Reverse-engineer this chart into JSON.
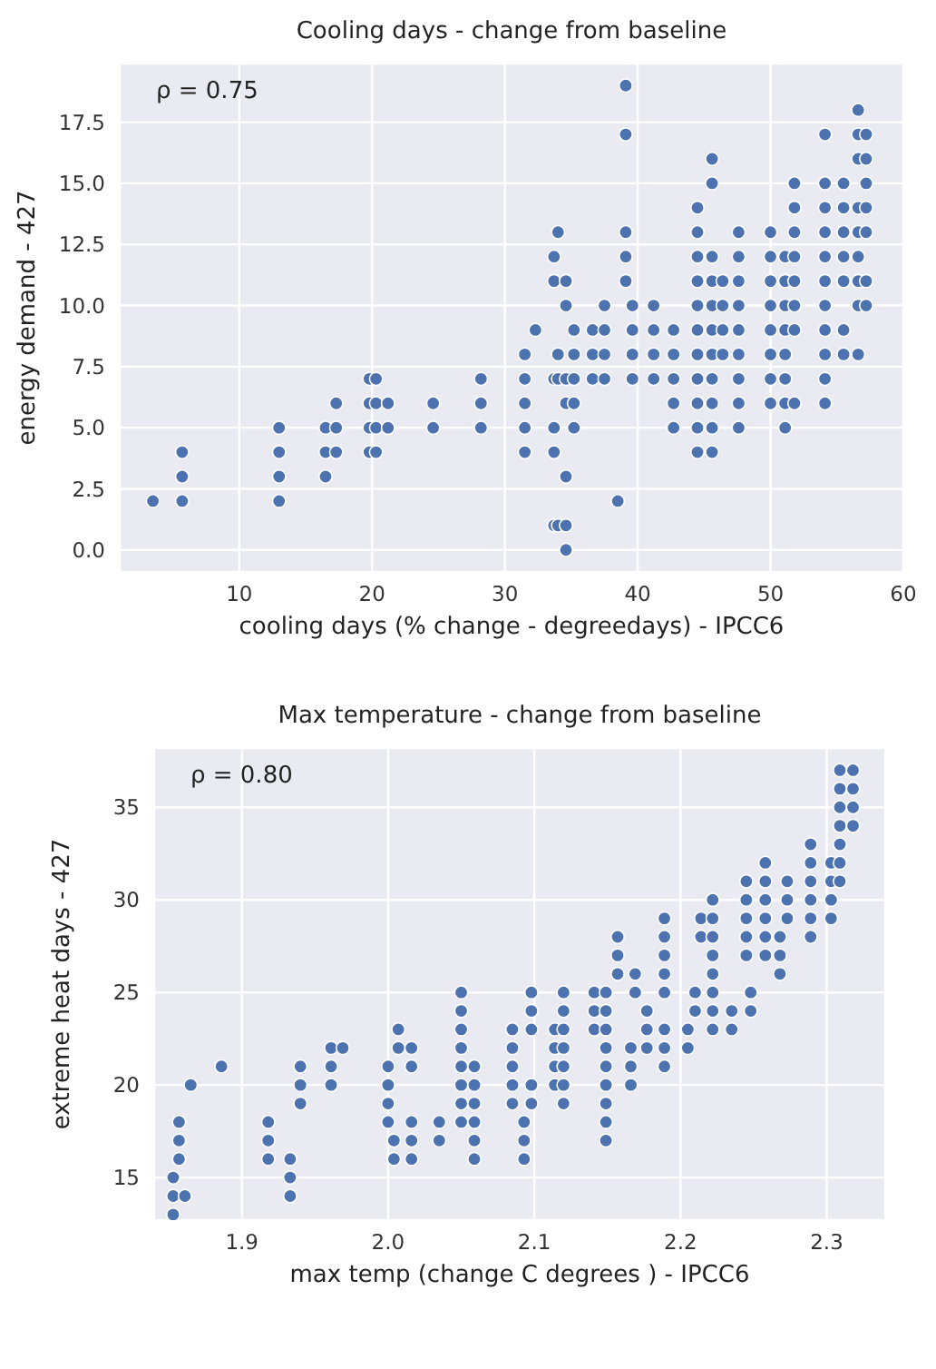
{
  "chart_data": [
    {
      "type": "scatter",
      "title": "Cooling days - change from baseline",
      "xlabel": "cooling days (% change - degreedays) - IPCC6",
      "ylabel": "energy demand - 427",
      "annotations": [
        "ρ = 0.75"
      ],
      "color": "#4c72b0",
      "marker": "circle",
      "grid": true,
      "x": [
        3.5,
        5.7,
        5.7,
        5.7,
        13,
        13,
        13,
        13,
        16.5,
        16.5,
        16.5,
        17.3,
        17.3,
        17.3,
        19.8,
        19.8,
        19.8,
        19.8,
        20.3,
        20.3,
        20.3,
        20.3,
        21.2,
        21.2,
        24.6,
        24.6,
        28.2,
        28.2,
        28.2,
        31.5,
        31.5,
        31.5,
        31.5,
        31.5,
        32.3,
        33.7,
        33.7,
        33.7,
        33.7,
        33.7,
        33.7,
        34.0,
        34.0,
        34.0,
        34.0,
        34.6,
        34.6,
        34.6,
        34.6,
        34.6,
        34.6,
        34.6,
        35.2,
        35.2,
        35.2,
        35.2,
        35.2,
        36.6,
        36.6,
        36.6,
        37.5,
        37.5,
        37.5,
        37.5,
        38.5,
        39.1,
        39.1,
        39.1,
        39.1,
        39.1,
        39.6,
        39.6,
        39.6,
        39.6,
        41.2,
        41.2,
        41.2,
        41.2,
        42.7,
        42.7,
        42.7,
        42.7,
        42.7,
        44.5,
        44.5,
        44.5,
        44.5,
        44.5,
        44.5,
        44.5,
        44.5,
        44.5,
        44.5,
        44.5,
        45.6,
        45.6,
        45.6,
        45.6,
        45.6,
        45.6,
        45.6,
        45.6,
        45.6,
        45.6,
        45.6,
        46.4,
        46.4,
        46.4,
        46.4,
        47.6,
        47.6,
        47.6,
        47.6,
        47.6,
        47.6,
        47.6,
        47.6,
        47.6,
        50.0,
        50.0,
        50.0,
        50.0,
        50.0,
        50.0,
        50.0,
        50.0,
        51.1,
        51.1,
        51.1,
        51.1,
        51.1,
        51.1,
        51.1,
        51.1,
        51.8,
        51.8,
        51.8,
        51.8,
        51.8,
        51.8,
        51.8,
        51.8,
        54.1,
        54.1,
        54.1,
        54.1,
        54.1,
        54.1,
        54.1,
        54.1,
        54.1,
        54.1,
        54.1,
        55.5,
        55.5,
        55.5,
        55.5,
        55.5,
        55.5,
        55.5,
        56.6,
        56.6,
        56.6,
        56.6,
        56.6,
        56.6,
        56.6,
        56.6,
        56.6,
        57.2,
        57.2,
        57.2,
        57.2,
        57.2,
        57.2,
        57.2
      ],
      "values": [
        2,
        2,
        3,
        4,
        2,
        3,
        4,
        5,
        3,
        4,
        5,
        4,
        5,
        6,
        4,
        5,
        6,
        7,
        4,
        5,
        6,
        7,
        5,
        6,
        5,
        6,
        5,
        6,
        7,
        4,
        5,
        6,
        7,
        8,
        9,
        1,
        4,
        5,
        7,
        11,
        12,
        1,
        7,
        8,
        13,
        0,
        1,
        3,
        6,
        7,
        10,
        11,
        5,
        6,
        7,
        8,
        9,
        7,
        8,
        9,
        7,
        8,
        9,
        10,
        2,
        11,
        12,
        13,
        17,
        19,
        7,
        8,
        9,
        10,
        7,
        8,
        9,
        10,
        5,
        6,
        7,
        8,
        9,
        4,
        5,
        6,
        7,
        8,
        9,
        10,
        11,
        12,
        13,
        14,
        4,
        5,
        6,
        7,
        8,
        9,
        10,
        11,
        12,
        15,
        16,
        8,
        9,
        10,
        11,
        5,
        6,
        7,
        8,
        9,
        10,
        11,
        12,
        13,
        6,
        7,
        8,
        9,
        10,
        11,
        12,
        13,
        5,
        6,
        7,
        8,
        9,
        10,
        11,
        12,
        6,
        9,
        10,
        11,
        12,
        13,
        14,
        15,
        6,
        7,
        8,
        9,
        10,
        11,
        12,
        13,
        14,
        15,
        17,
        8,
        9,
        11,
        12,
        13,
        14,
        15,
        8,
        10,
        11,
        12,
        13,
        14,
        16,
        17,
        18,
        10,
        11,
        13,
        14,
        15,
        16,
        17
      ],
      "xlim": [
        1,
        60
      ],
      "xticks": [
        10,
        20,
        30,
        40,
        50,
        60
      ],
      "ylim": [
        -0.9,
        19.9
      ],
      "yticks": [
        {
          "value": 0,
          "label": "0.0"
        },
        {
          "value": 2.5,
          "label": "2.5"
        },
        {
          "value": 5,
          "label": "5.0"
        },
        {
          "value": 7.5,
          "label": "7.5"
        },
        {
          "value": 10,
          "label": "10.0"
        },
        {
          "value": 12.5,
          "label": "12.5"
        },
        {
          "value": 15,
          "label": "15.0"
        },
        {
          "value": 17.5,
          "label": "17.5"
        }
      ]
    },
    {
      "type": "scatter",
      "title": "Max temperature - change from baseline",
      "xlabel": "max temp (change C degrees ) - IPCC6",
      "ylabel": "extreme heat days - 427",
      "annotations": [
        "ρ = 0.80"
      ],
      "color": "#4c72b0",
      "marker": "circle",
      "grid": true,
      "x": [
        1.853,
        1.853,
        1.853,
        1.857,
        1.857,
        1.857,
        1.861,
        1.865,
        1.886,
        1.918,
        1.918,
        1.918,
        1.933,
        1.933,
        1.933,
        1.94,
        1.94,
        1.94,
        1.961,
        1.961,
        1.961,
        1.969,
        2.0,
        2.0,
        2.0,
        2.0,
        2.004,
        2.004,
        2.007,
        2.007,
        2.016,
        2.016,
        2.016,
        2.016,
        2.016,
        2.035,
        2.035,
        2.05,
        2.05,
        2.05,
        2.05,
        2.05,
        2.05,
        2.05,
        2.05,
        2.059,
        2.059,
        2.059,
        2.059,
        2.059,
        2.059,
        2.085,
        2.085,
        2.085,
        2.085,
        2.085,
        2.093,
        2.093,
        2.093,
        2.098,
        2.098,
        2.098,
        2.098,
        2.098,
        2.114,
        2.114,
        2.114,
        2.114,
        2.12,
        2.12,
        2.12,
        2.12,
        2.12,
        2.12,
        2.12,
        2.141,
        2.141,
        2.141,
        2.149,
        2.149,
        2.149,
        2.149,
        2.149,
        2.149,
        2.149,
        2.149,
        2.149,
        2.157,
        2.157,
        2.157,
        2.166,
        2.166,
        2.166,
        2.169,
        2.169,
        2.177,
        2.177,
        2.177,
        2.189,
        2.189,
        2.189,
        2.189,
        2.189,
        2.189,
        2.189,
        2.189,
        2.205,
        2.205,
        2.21,
        2.21,
        2.214,
        2.214,
        2.222,
        2.222,
        2.222,
        2.222,
        2.222,
        2.222,
        2.222,
        2.222,
        2.235,
        2.235,
        2.245,
        2.245,
        2.245,
        2.245,
        2.245,
        2.248,
        2.248,
        2.258,
        2.258,
        2.258,
        2.258,
        2.258,
        2.258,
        2.268,
        2.268,
        2.268,
        2.273,
        2.273,
        2.273,
        2.289,
        2.289,
        2.289,
        2.289,
        2.289,
        2.289,
        2.303,
        2.303,
        2.303,
        2.303,
        2.309,
        2.309,
        2.309,
        2.309,
        2.309,
        2.309,
        2.309,
        2.318,
        2.318,
        2.318,
        2.318
      ],
      "values": [
        13,
        14,
        15,
        16,
        17,
        18,
        14,
        20,
        21,
        16,
        17,
        18,
        14,
        15,
        16,
        19,
        20,
        21,
        20,
        21,
        22,
        22,
        18,
        19,
        20,
        21,
        16,
        17,
        22,
        23,
        16,
        17,
        18,
        21,
        22,
        17,
        18,
        18,
        19,
        20,
        21,
        22,
        23,
        24,
        25,
        16,
        17,
        18,
        19,
        20,
        21,
        19,
        20,
        21,
        22,
        23,
        16,
        17,
        18,
        19,
        20,
        23,
        24,
        25,
        20,
        21,
        22,
        23,
        19,
        20,
        21,
        22,
        23,
        24,
        25,
        23,
        24,
        25,
        17,
        18,
        19,
        20,
        21,
        22,
        23,
        24,
        25,
        26,
        27,
        28,
        20,
        21,
        22,
        25,
        26,
        22,
        23,
        24,
        21,
        22,
        23,
        25,
        26,
        27,
        28,
        29,
        22,
        23,
        24,
        25,
        28,
        29,
        23,
        24,
        25,
        26,
        27,
        28,
        29,
        30,
        23,
        24,
        27,
        28,
        29,
        30,
        31,
        24,
        25,
        27,
        28,
        29,
        30,
        31,
        32,
        26,
        27,
        28,
        29,
        30,
        31,
        28,
        29,
        30,
        31,
        32,
        33,
        29,
        30,
        31,
        32,
        31,
        32,
        33,
        34,
        35,
        36,
        37,
        34,
        35,
        36,
        37
      ],
      "xlim": [
        1.84,
        2.34
      ],
      "xticks": [
        1.9,
        {
          "value": 2.0,
          "label": "2.0"
        },
        2.1,
        2.2,
        2.3
      ],
      "ylim": [
        12.7,
        38.2
      ],
      "yticks": [
        15,
        20,
        25,
        30,
        35
      ]
    }
  ]
}
